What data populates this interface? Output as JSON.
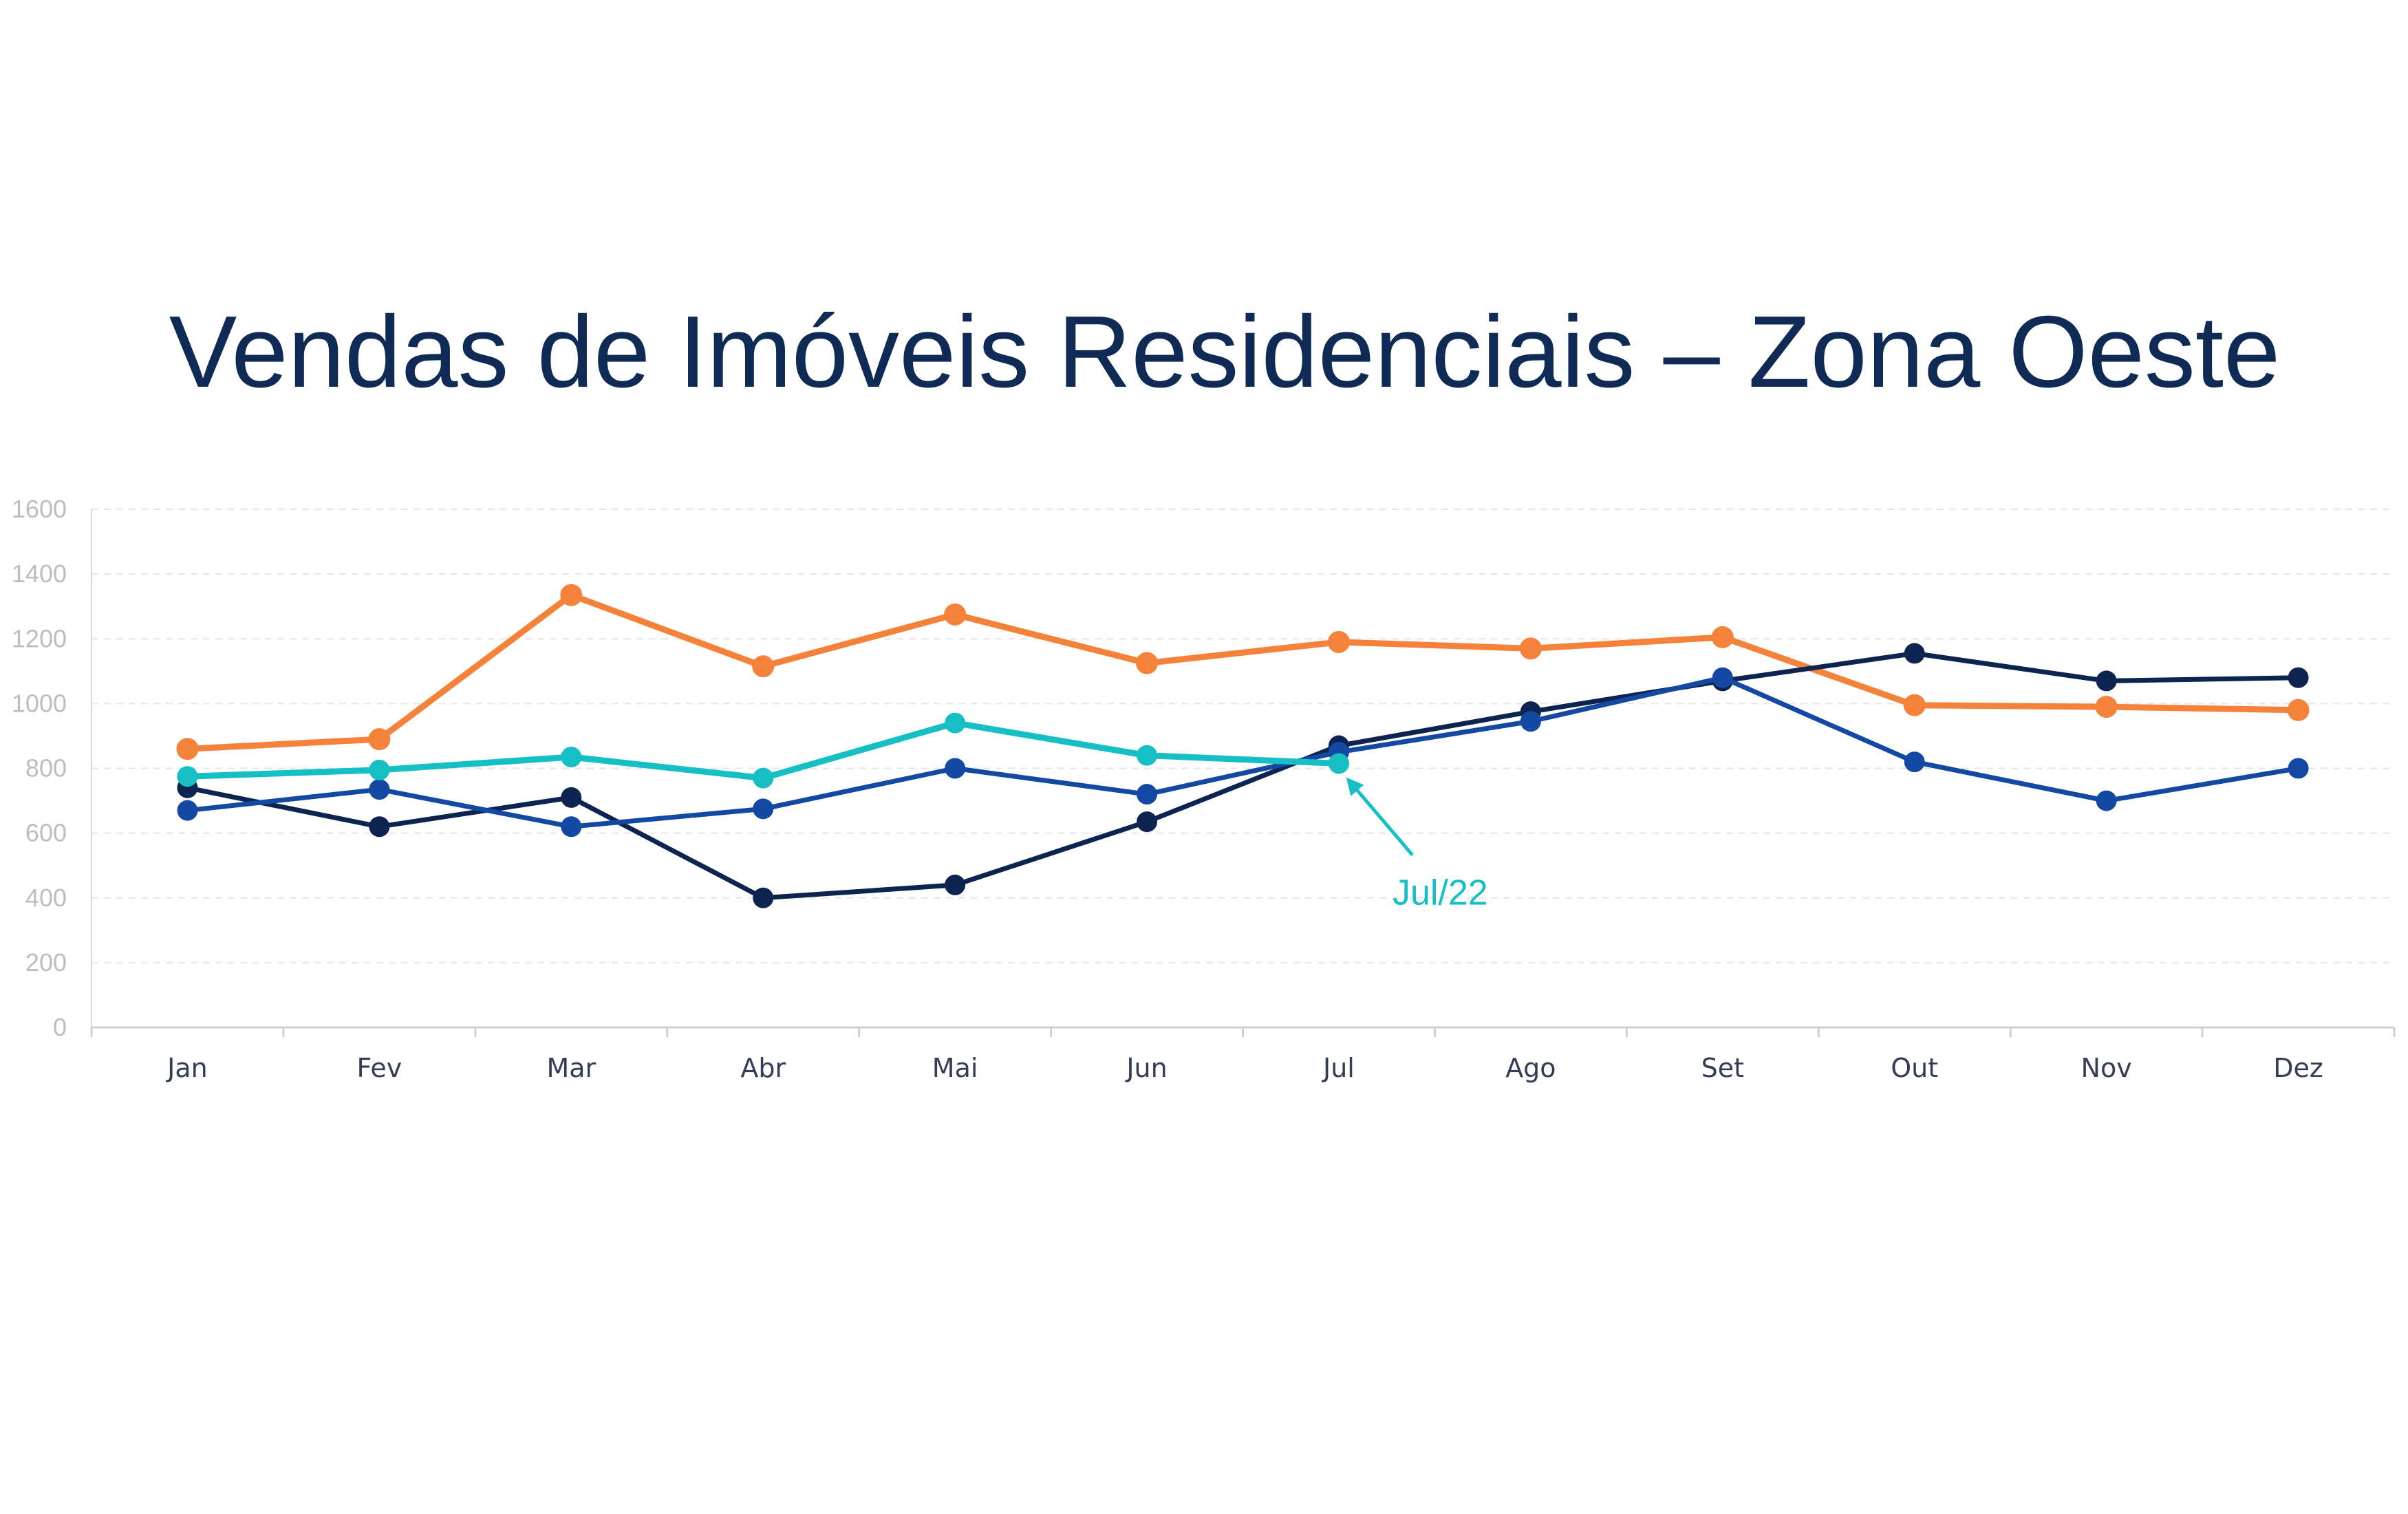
{
  "title": "Vendas de Imóveis Residenciais – Zona Oeste",
  "chart_data": {
    "type": "line",
    "categories": [
      "Jan",
      "Fev",
      "Mar",
      "Abr",
      "Mai",
      "Jun",
      "Jul",
      "Ago",
      "Set",
      "Out",
      "Nov",
      "Dez"
    ],
    "ylim": [
      0,
      1600
    ],
    "yticks": [
      0,
      200,
      400,
      600,
      800,
      1000,
      1200,
      1400,
      1600
    ],
    "grid": true,
    "legend": "none",
    "xlabel": "",
    "ylabel": "",
    "series": [
      {
        "color": "#f5823a",
        "values": [
          860,
          890,
          1335,
          1115,
          1275,
          1125,
          1190,
          1170,
          1205,
          995,
          990,
          980
        ]
      },
      {
        "color": "#0d2450",
        "values": [
          740,
          620,
          710,
          400,
          440,
          635,
          870,
          975,
          1070,
          1155,
          1070,
          1080
        ]
      },
      {
        "color": "#1449a3",
        "values": [
          670,
          735,
          620,
          675,
          800,
          720,
          850,
          945,
          1080,
          820,
          700,
          800
        ]
      },
      {
        "color": "#15bfc4",
        "values": [
          775,
          795,
          835,
          770,
          940,
          840,
          815,
          null,
          null,
          null,
          null,
          null
        ]
      }
    ],
    "annotations": [
      {
        "text": "Jul/22",
        "category": "Jul",
        "value": 815,
        "color": "#15bfc4"
      }
    ]
  }
}
